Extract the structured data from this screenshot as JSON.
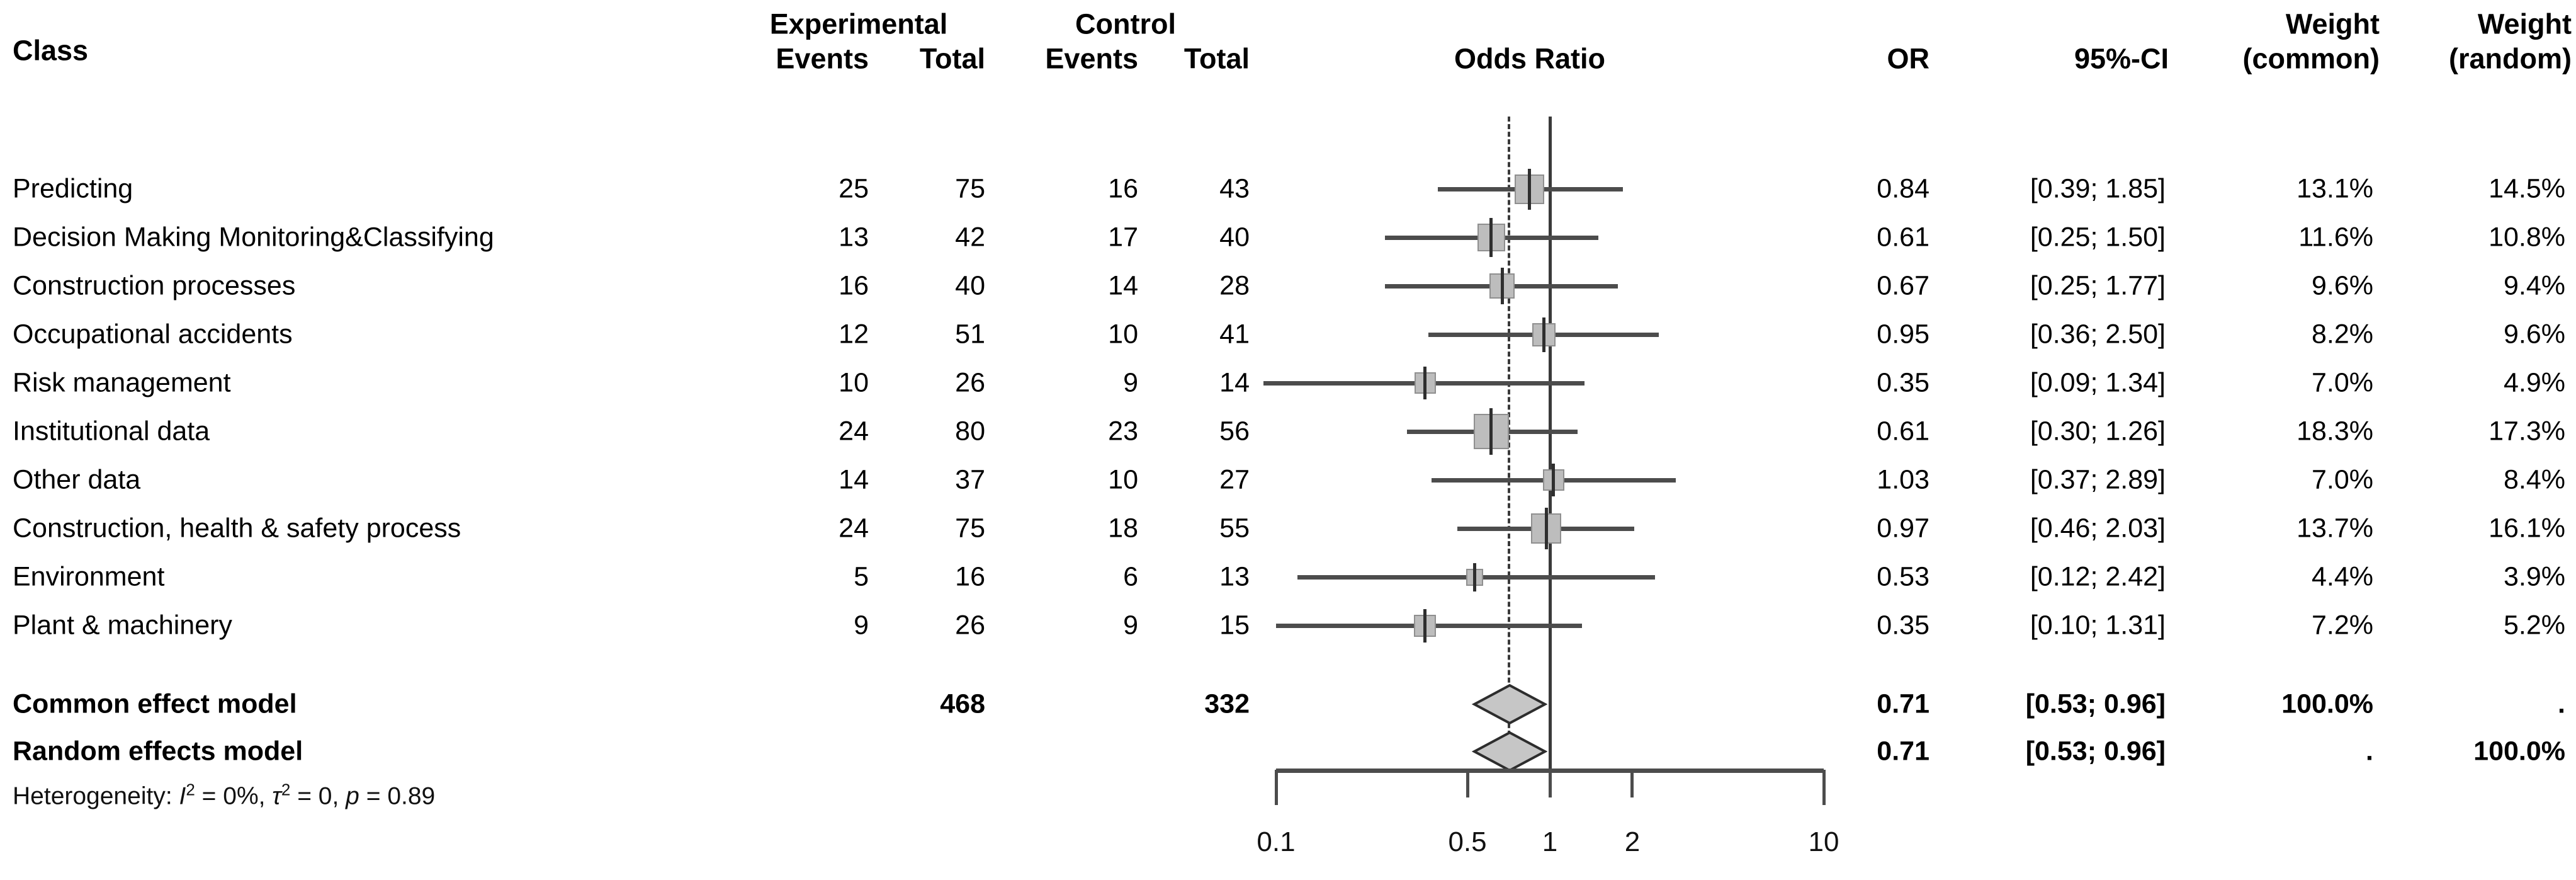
{
  "header": {
    "class": "Class",
    "experimental": "Experimental",
    "control": "Control",
    "events": "Events",
    "total": "Total",
    "odds_ratio": "Odds Ratio",
    "or": "OR",
    "ci": "95%-CI",
    "weight": "Weight",
    "weight_common": "(common)",
    "weight_random": "(random)"
  },
  "chart_data": {
    "type": "forest",
    "effect_measure": "Odds Ratio",
    "x_axis": {
      "scale": "log",
      "xlim": [
        0.1,
        10
      ],
      "ticks": [
        0.1,
        0.5,
        1,
        2,
        10
      ],
      "tick_labels": [
        "0.1",
        "0.5",
        "1",
        "2",
        "10"
      ],
      "reference_line": 1.0,
      "pooled_dashed_line": 0.71
    },
    "rows": [
      {
        "label": "Predicting",
        "exp_events": "25",
        "exp_total": "75",
        "ctrl_events": "16",
        "ctrl_total": "43",
        "or": 0.84,
        "ci_low": 0.39,
        "ci_high": 1.85,
        "or_text": "0.84",
        "ci_text": "[0.39; 1.85]",
        "w_common": 13.1,
        "w_random": 14.5,
        "w_common_text": "13.1%",
        "w_random_text": "14.5%"
      },
      {
        "label": "Decision Making Monitoring&Classifying",
        "exp_events": "13",
        "exp_total": "42",
        "ctrl_events": "17",
        "ctrl_total": "40",
        "or": 0.61,
        "ci_low": 0.25,
        "ci_high": 1.5,
        "or_text": "0.61",
        "ci_text": "[0.25; 1.50]",
        "w_common": 11.6,
        "w_random": 10.8,
        "w_common_text": "11.6%",
        "w_random_text": "10.8%"
      },
      {
        "label": "Construction processes",
        "exp_events": "16",
        "exp_total": "40",
        "ctrl_events": "14",
        "ctrl_total": "28",
        "or": 0.67,
        "ci_low": 0.25,
        "ci_high": 1.77,
        "or_text": "0.67",
        "ci_text": "[0.25; 1.77]",
        "w_common": 9.6,
        "w_random": 9.4,
        "w_common_text": "9.6%",
        "w_random_text": "9.4%"
      },
      {
        "label": "Occupational accidents",
        "exp_events": "12",
        "exp_total": "51",
        "ctrl_events": "10",
        "ctrl_total": "41",
        "or": 0.95,
        "ci_low": 0.36,
        "ci_high": 2.5,
        "or_text": "0.95",
        "ci_text": "[0.36; 2.50]",
        "w_common": 8.2,
        "w_random": 9.6,
        "w_common_text": "8.2%",
        "w_random_text": "9.6%"
      },
      {
        "label": "Risk management",
        "exp_events": "10",
        "exp_total": "26",
        "ctrl_events": "9",
        "ctrl_total": "14",
        "or": 0.35,
        "ci_low": 0.09,
        "ci_high": 1.34,
        "or_text": "0.35",
        "ci_text": "[0.09; 1.34]",
        "w_common": 7.0,
        "w_random": 4.9,
        "w_common_text": "7.0%",
        "w_random_text": "4.9%"
      },
      {
        "label": "Institutional data",
        "exp_events": "24",
        "exp_total": "80",
        "ctrl_events": "23",
        "ctrl_total": "56",
        "or": 0.61,
        "ci_low": 0.3,
        "ci_high": 1.26,
        "or_text": "0.61",
        "ci_text": "[0.30; 1.26]",
        "w_common": 18.3,
        "w_random": 17.3,
        "w_common_text": "18.3%",
        "w_random_text": "17.3%"
      },
      {
        "label": "Other data",
        "exp_events": "14",
        "exp_total": "37",
        "ctrl_events": "10",
        "ctrl_total": "27",
        "or": 1.03,
        "ci_low": 0.37,
        "ci_high": 2.89,
        "or_text": "1.03",
        "ci_text": "[0.37; 2.89]",
        "w_common": 7.0,
        "w_random": 8.4,
        "w_common_text": "7.0%",
        "w_random_text": "8.4%"
      },
      {
        "label": "Construction, health & safety process",
        "exp_events": "24",
        "exp_total": "75",
        "ctrl_events": "18",
        "ctrl_total": "55",
        "or": 0.97,
        "ci_low": 0.46,
        "ci_high": 2.03,
        "or_text": "0.97",
        "ci_text": "[0.46; 2.03]",
        "w_common": 13.7,
        "w_random": 16.1,
        "w_common_text": "13.7%",
        "w_random_text": "16.1%"
      },
      {
        "label": "Environment",
        "exp_events": "5",
        "exp_total": "16",
        "ctrl_events": "6",
        "ctrl_total": "13",
        "or": 0.53,
        "ci_low": 0.12,
        "ci_high": 2.42,
        "or_text": "0.53",
        "ci_text": "[0.12; 2.42]",
        "w_common": 4.4,
        "w_random": 3.9,
        "w_common_text": "4.4%",
        "w_random_text": "3.9%"
      },
      {
        "label": "Plant & machinery",
        "exp_events": "9",
        "exp_total": "26",
        "ctrl_events": "9",
        "ctrl_total": "15",
        "or": 0.35,
        "ci_low": 0.1,
        "ci_high": 1.31,
        "or_text": "0.35",
        "ci_text": "[0.10; 1.31]",
        "w_common": 7.2,
        "w_random": 5.2,
        "w_common_text": "7.2%",
        "w_random_text": "5.2%"
      }
    ],
    "models": [
      {
        "label": "Common effect model",
        "exp_total": "468",
        "ctrl_total": "332",
        "or": 0.71,
        "ci_low": 0.53,
        "ci_high": 0.96,
        "or_text": "0.71",
        "ci_text": "[0.53; 0.96]",
        "w_common_text": "100.0%",
        "w_random_text": "."
      },
      {
        "label": "Random effects model",
        "exp_total": "",
        "ctrl_total": "",
        "or": 0.71,
        "ci_low": 0.53,
        "ci_high": 0.96,
        "or_text": "0.71",
        "ci_text": "[0.53; 0.96]",
        "w_common_text": ".",
        "w_random_text": "100.0%"
      }
    ],
    "heterogeneity": {
      "prefix": "Heterogeneity: ",
      "i_sym": "I",
      "i_sup": "2",
      "i_eq": " = 0%, ",
      "tau_sym": "τ",
      "tau_sup": "2",
      "tau_eq": " = 0, ",
      "p_sym": "p",
      "p_eq": " = 0.89"
    }
  }
}
